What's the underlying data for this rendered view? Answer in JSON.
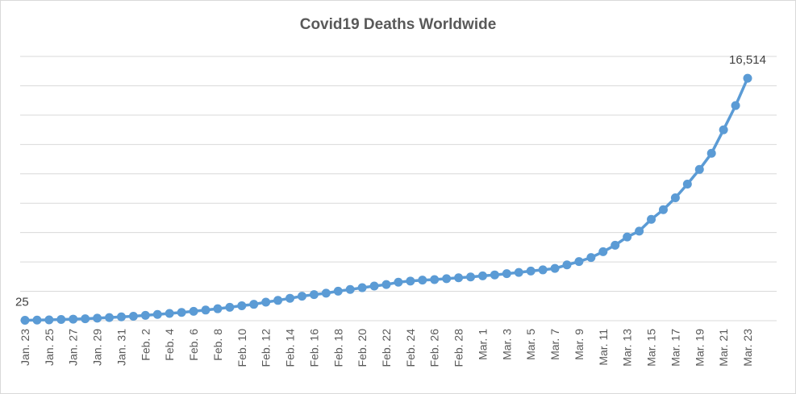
{
  "chart_data": {
    "type": "line",
    "title": "Covid19 Deaths Worldwide",
    "xlabel": "",
    "ylabel": "",
    "ylim": [
      0,
      18000
    ],
    "grid": true,
    "legend": "none",
    "color": "#5b9bd5",
    "x": [
      "Jan. 23",
      "Jan. 24",
      "Jan. 25",
      "Jan. 26",
      "Jan. 27",
      "Jan. 28",
      "Jan. 29",
      "Jan. 30",
      "Jan. 31",
      "Feb. 1",
      "Feb. 2",
      "Feb. 3",
      "Feb. 4",
      "Feb. 5",
      "Feb. 6",
      "Feb. 7",
      "Feb. 8",
      "Feb. 9",
      "Feb. 10",
      "Feb. 11",
      "Feb. 12",
      "Feb. 13",
      "Feb. 14",
      "Feb. 15",
      "Feb. 16",
      "Feb. 17",
      "Feb. 18",
      "Feb. 19",
      "Feb. 20",
      "Feb. 21",
      "Feb. 22",
      "Feb. 23",
      "Feb. 24",
      "Feb. 25",
      "Feb. 26",
      "Feb. 27",
      "Feb. 28",
      "Feb. 29",
      "Mar. 1",
      "Mar. 2",
      "Mar. 3",
      "Mar. 4",
      "Mar. 5",
      "Mar. 6",
      "Mar. 7",
      "Mar. 8",
      "Mar. 9",
      "Mar. 10",
      "Mar. 11",
      "Mar. 12",
      "Mar. 13",
      "Mar. 14",
      "Mar. 15",
      "Mar. 16",
      "Mar. 17",
      "Mar. 18",
      "Mar. 19",
      "Mar. 20",
      "Mar. 21",
      "Mar. 22",
      "Mar. 23"
    ],
    "tick_labels": [
      "Jan. 23",
      "Jan. 25",
      "Jan. 27",
      "Jan. 29",
      "Jan. 31",
      "Feb. 2",
      "Feb. 4",
      "Feb. 6",
      "Feb. 8",
      "Feb. 10",
      "Feb. 12",
      "Feb. 14",
      "Feb. 16",
      "Feb. 18",
      "Feb. 20",
      "Feb. 22",
      "Feb. 24",
      "Feb. 26",
      "Feb. 28",
      "Mar. 1",
      "Mar. 3",
      "Mar. 5",
      "Mar. 7",
      "Mar. 9",
      "Mar. 11",
      "Mar. 13",
      "Mar. 15",
      "Mar. 17",
      "Mar. 19",
      "Mar. 21",
      "Mar. 23"
    ],
    "series": [
      {
        "values": [
          25,
          41,
          56,
          80,
          106,
          132,
          170,
          213,
          259,
          304,
          362,
          426,
          492,
          565,
          638,
          724,
          813,
          910,
          1018,
          1115,
          1261,
          1383,
          1526,
          1669,
          1775,
          1873,
          2009,
          2126,
          2247,
          2360,
          2460,
          2618,
          2699,
          2763,
          2800,
          2858,
          2923,
          2977,
          3050,
          3117,
          3202,
          3285,
          3380,
          3461,
          3558,
          3800,
          4026,
          4300,
          4700,
          5140,
          5700,
          6100,
          6900,
          7560,
          8370,
          9300,
          10300,
          11400,
          13000,
          14650,
          16514
        ]
      }
    ],
    "data_labels": [
      {
        "index": 0,
        "text": "25"
      },
      {
        "index": 60,
        "text": "16,514"
      }
    ]
  }
}
